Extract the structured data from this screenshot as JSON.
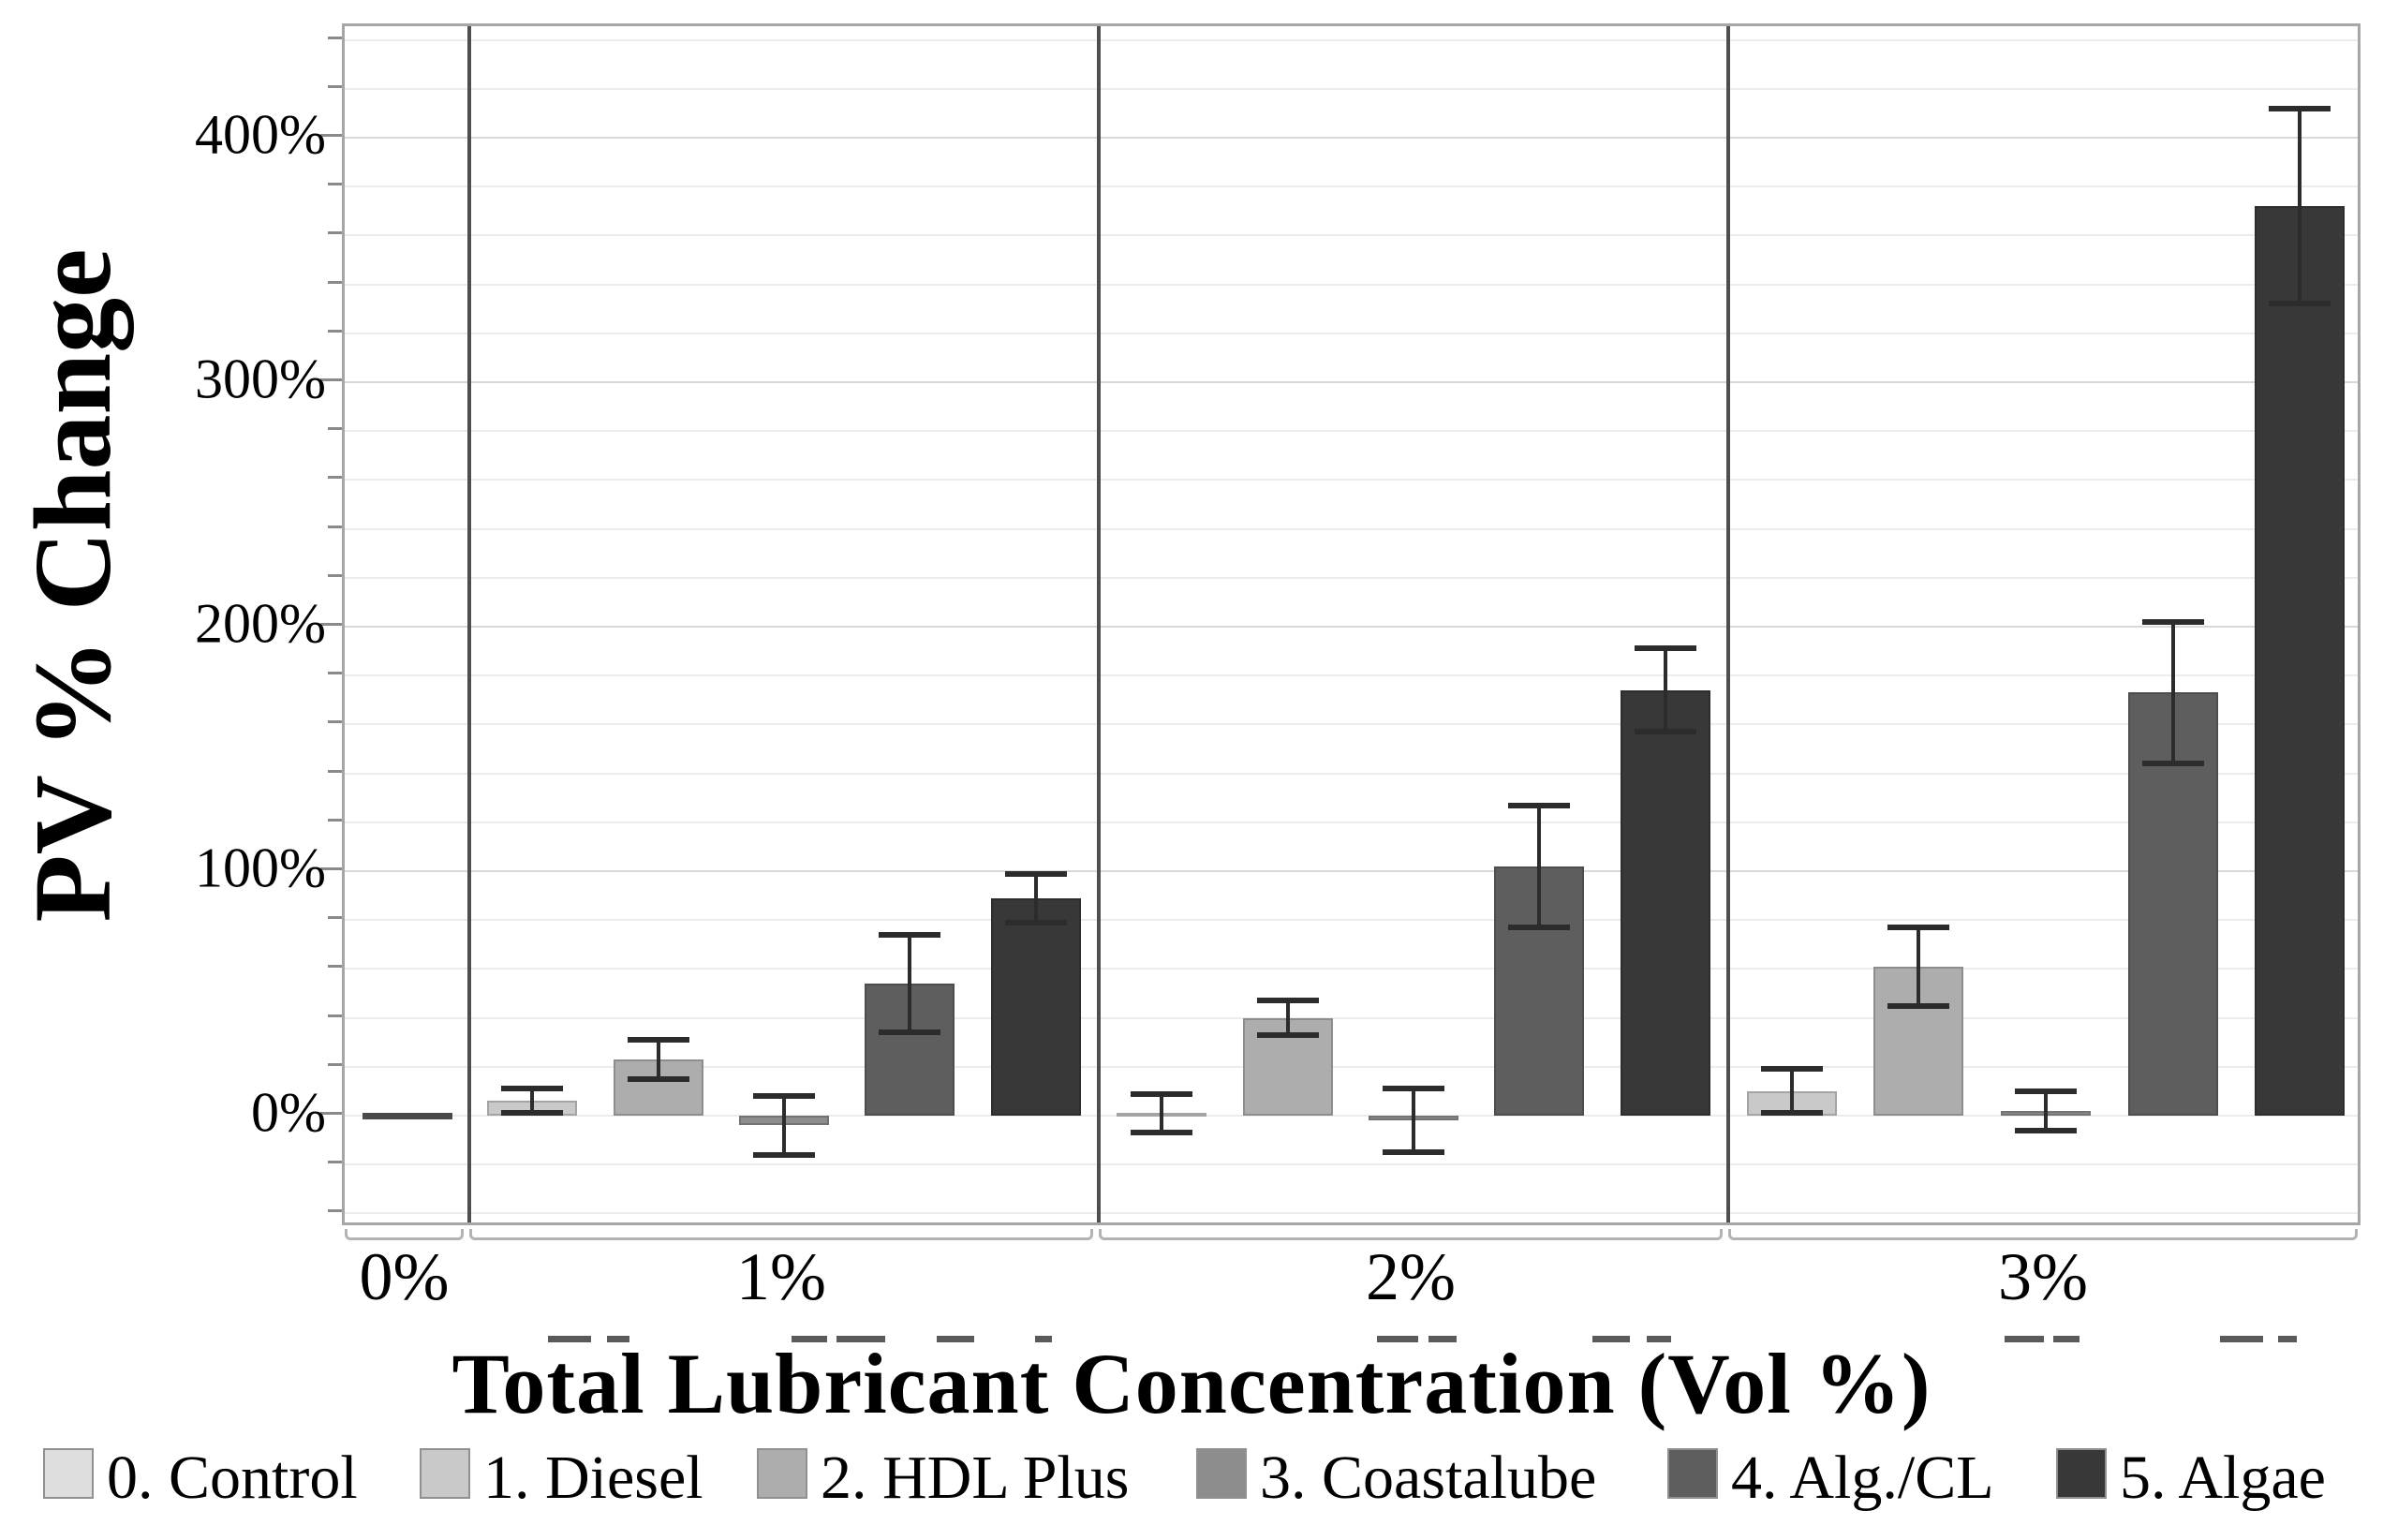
{
  "chart_data": {
    "type": "bar",
    "title": "",
    "xlabel": "Total Lubricant Concentration (Vol %)",
    "ylabel": "PV % Change",
    "categories": [
      "0%",
      "1%",
      "2%",
      "3%"
    ],
    "y_tick_labels": [
      "0%",
      "100%",
      "200%",
      "300%",
      "400%"
    ],
    "y_tick_values": [
      0,
      100,
      200,
      300,
      400
    ],
    "minor_gridline_step_pct": 20,
    "ylim": [
      -46,
      445
    ],
    "grid": "on",
    "legend_position": "bottom",
    "error_bars": true,
    "series": [
      {
        "name": "0. Control",
        "color": "#dedede",
        "values": [
          0,
          null,
          null,
          null
        ],
        "errors": [
          0,
          null,
          null,
          null
        ]
      },
      {
        "name": "1. Diesel",
        "color": "#c9c9c9",
        "values": [
          null,
          6,
          1,
          10
        ],
        "errors": [
          null,
          5,
          8,
          9
        ]
      },
      {
        "name": "2. HDL Plus",
        "color": "#adadad",
        "values": [
          null,
          23,
          40,
          61
        ],
        "errors": [
          null,
          8,
          7,
          16
        ]
      },
      {
        "name": "3. Coastalube",
        "color": "#8d8d8d",
        "values": [
          null,
          -4,
          -2,
          2
        ],
        "errors": [
          null,
          12,
          13,
          8
        ]
      },
      {
        "name": "4. Alg./CL",
        "color": "#5e5e5e",
        "values": [
          null,
          54,
          102,
          173
        ],
        "errors": [
          null,
          20,
          25,
          29
        ]
      },
      {
        "name": "5. Algae",
        "color": "#383838",
        "values": [
          null,
          89,
          174,
          372
        ],
        "errors": [
          null,
          10,
          17,
          40
        ]
      }
    ]
  }
}
